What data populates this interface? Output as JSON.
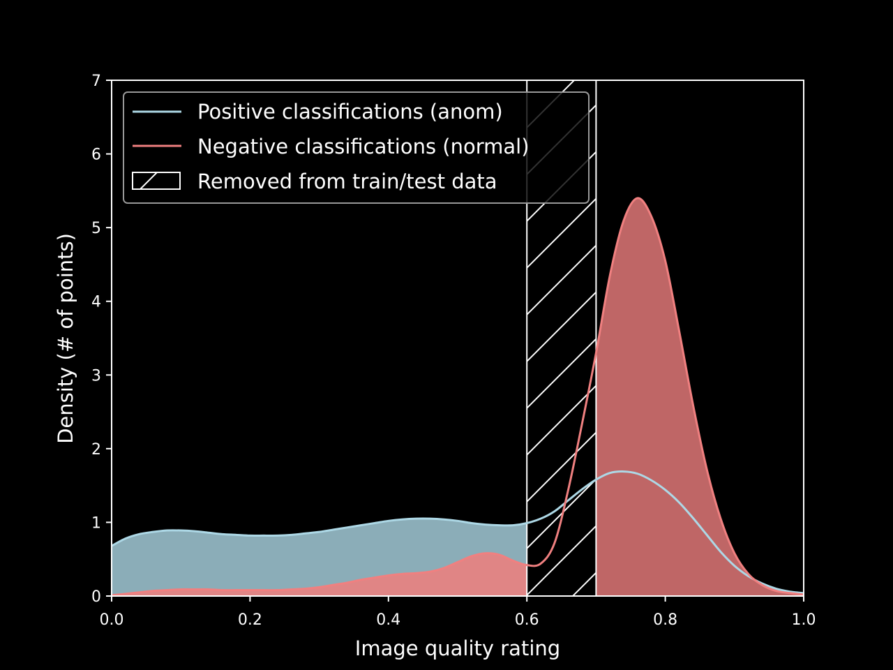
{
  "chart_data": {
    "type": "area",
    "title": "",
    "xlabel": "Image quality rating",
    "ylabel": "Density (# of points)",
    "xlim": [
      0.0,
      1.0
    ],
    "ylim": [
      0,
      7
    ],
    "xticks": [
      "0.0",
      "0.2",
      "0.4",
      "0.6",
      "0.8",
      "1.0"
    ],
    "yticks": [
      "0",
      "1",
      "2",
      "3",
      "4",
      "5",
      "6",
      "7"
    ],
    "grid": false,
    "legend_position": "upper-left",
    "removed_range": [
      0.6,
      0.7
    ],
    "series": [
      {
        "name": "Positive classifications (anom)",
        "line_color": "#add8e6",
        "fill_color_before": "#8badb8",
        "fill_color_after": "#d98a8c",
        "x": [
          0.0,
          0.02,
          0.04,
          0.06,
          0.08,
          0.1,
          0.12,
          0.14,
          0.16,
          0.18,
          0.2,
          0.22,
          0.24,
          0.26,
          0.28,
          0.3,
          0.32,
          0.34,
          0.36,
          0.38,
          0.4,
          0.42,
          0.44,
          0.46,
          0.48,
          0.5,
          0.52,
          0.54,
          0.56,
          0.58,
          0.6,
          0.62,
          0.64,
          0.66,
          0.68,
          0.7,
          0.72,
          0.74,
          0.76,
          0.78,
          0.8,
          0.82,
          0.84,
          0.86,
          0.88,
          0.9,
          0.92,
          0.94,
          0.96,
          0.98,
          1.0
        ],
        "values": [
          0.68,
          0.78,
          0.84,
          0.87,
          0.89,
          0.89,
          0.88,
          0.86,
          0.84,
          0.83,
          0.82,
          0.82,
          0.82,
          0.83,
          0.85,
          0.87,
          0.9,
          0.93,
          0.96,
          0.99,
          1.02,
          1.04,
          1.05,
          1.05,
          1.04,
          1.02,
          0.99,
          0.97,
          0.96,
          0.96,
          0.99,
          1.05,
          1.15,
          1.3,
          1.45,
          1.58,
          1.67,
          1.69,
          1.66,
          1.57,
          1.44,
          1.27,
          1.06,
          0.83,
          0.6,
          0.41,
          0.27,
          0.17,
          0.1,
          0.06,
          0.04
        ]
      },
      {
        "name": "Negative classifications (normal)",
        "line_color": "#f08080",
        "fill_color_before": "#e08585",
        "fill_color_after": "#bf6666",
        "x": [
          0.0,
          0.02,
          0.04,
          0.06,
          0.08,
          0.1,
          0.12,
          0.14,
          0.16,
          0.18,
          0.2,
          0.22,
          0.24,
          0.26,
          0.28,
          0.3,
          0.32,
          0.34,
          0.36,
          0.38,
          0.4,
          0.42,
          0.44,
          0.46,
          0.48,
          0.5,
          0.52,
          0.54,
          0.56,
          0.58,
          0.6,
          0.62,
          0.64,
          0.66,
          0.68,
          0.7,
          0.72,
          0.74,
          0.76,
          0.78,
          0.8,
          0.82,
          0.84,
          0.86,
          0.88,
          0.9,
          0.92,
          0.94,
          0.96,
          0.98,
          1.0
        ],
        "values": [
          0.01,
          0.03,
          0.05,
          0.07,
          0.08,
          0.09,
          0.09,
          0.09,
          0.08,
          0.08,
          0.08,
          0.08,
          0.08,
          0.09,
          0.1,
          0.12,
          0.15,
          0.18,
          0.22,
          0.25,
          0.28,
          0.3,
          0.31,
          0.33,
          0.38,
          0.46,
          0.54,
          0.58,
          0.56,
          0.48,
          0.42,
          0.44,
          0.72,
          1.45,
          2.35,
          3.3,
          4.35,
          5.1,
          5.4,
          5.15,
          4.55,
          3.6,
          2.6,
          1.72,
          1.05,
          0.58,
          0.3,
          0.15,
          0.07,
          0.04,
          0.02
        ]
      }
    ],
    "legend": [
      {
        "label": "Positive classifications (anom)",
        "kind": "line",
        "color": "#add8e6"
      },
      {
        "label": "Negative classifications (normal)",
        "kind": "line",
        "color": "#f08080"
      },
      {
        "label": "Removed from train/test data",
        "kind": "hatch",
        "color": "#ffffff"
      }
    ]
  }
}
